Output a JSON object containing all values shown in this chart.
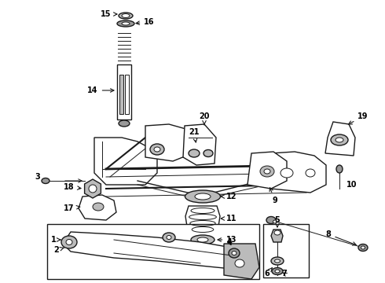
{
  "bg_color": "#ffffff",
  "line_color": "#1a1a1a",
  "fig_width": 4.9,
  "fig_height": 3.6,
  "dpi": 100,
  "gray_fill": "#888888",
  "light_gray": "#bbbbbb",
  "mid_gray": "#999999",
  "dark_gray": "#555555"
}
